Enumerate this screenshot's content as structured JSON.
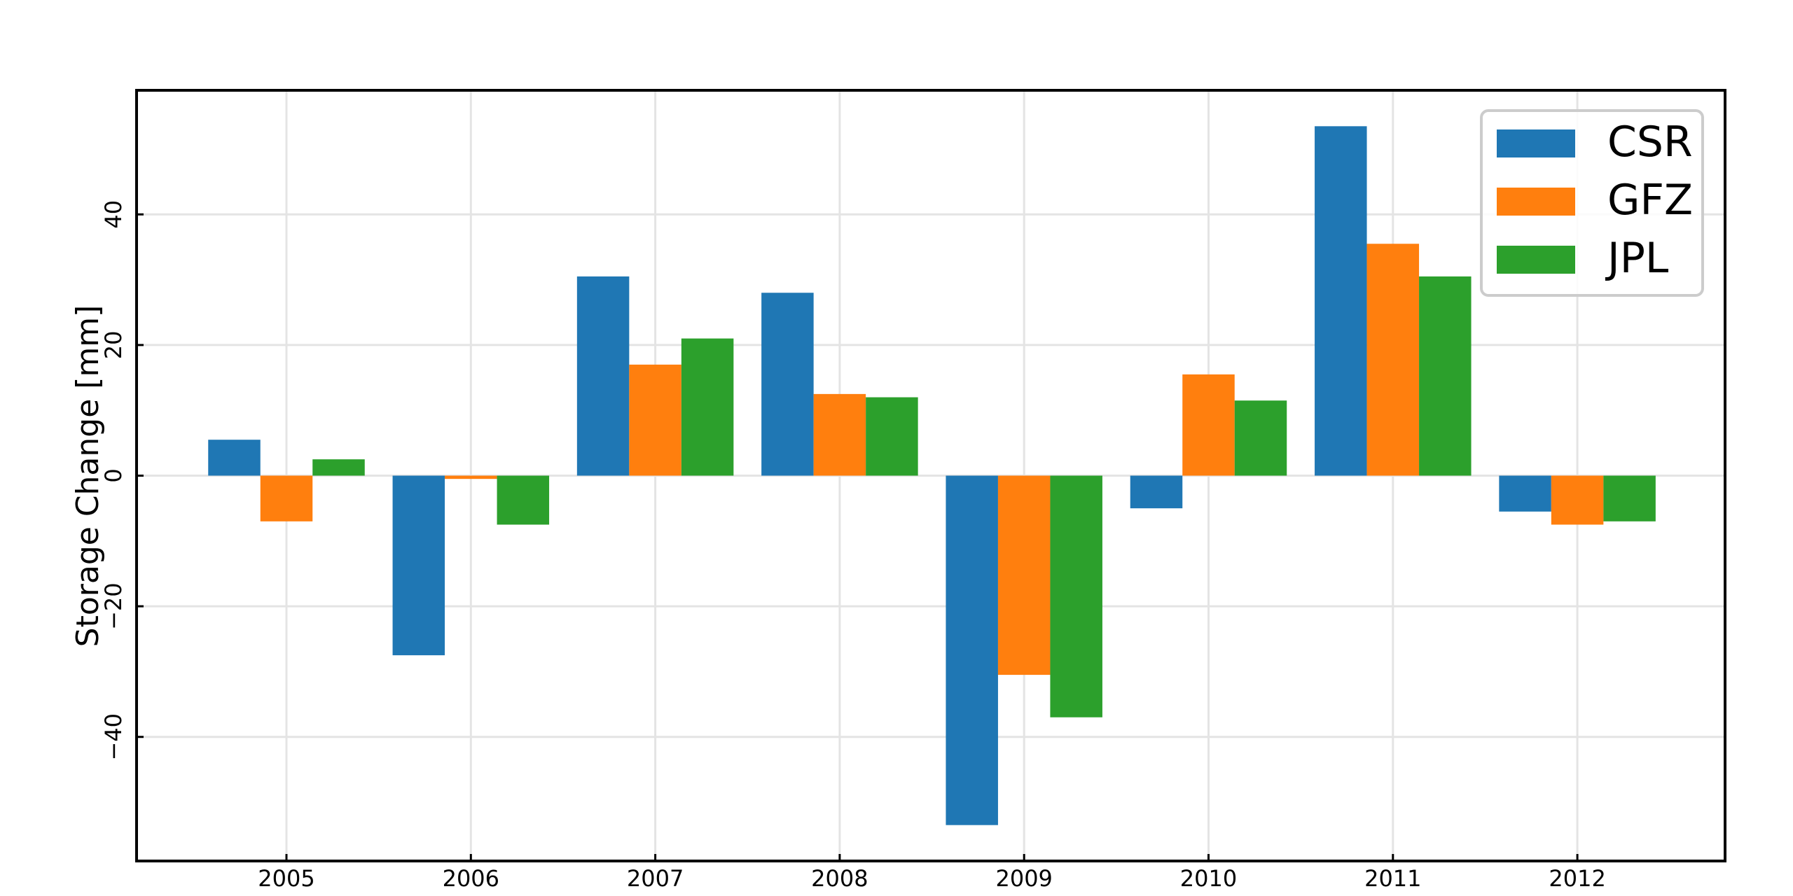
{
  "chart_data": {
    "type": "bar",
    "categories": [
      "2005",
      "2006",
      "2007",
      "2008",
      "2009",
      "2010",
      "2011",
      "2012"
    ],
    "series": [
      {
        "name": "CSR",
        "color": "#1f77b4",
        "values": [
          5.5,
          -27.5,
          30.5,
          28.0,
          -53.5,
          -5.0,
          53.5,
          -5.5
        ]
      },
      {
        "name": "GFZ",
        "color": "#ff7f0e",
        "values": [
          -7.0,
          -0.5,
          17.0,
          12.5,
          -30.5,
          15.5,
          35.5,
          -7.5
        ]
      },
      {
        "name": "JPL",
        "color": "#2ca02c",
        "values": [
          2.5,
          -7.5,
          21.0,
          12.0,
          -37.0,
          11.5,
          30.5,
          -7.0
        ]
      }
    ],
    "ylabel": "Storage Change [mm]",
    "ylim": [
      -59,
      59
    ],
    "yticks": [
      -40,
      -20,
      0,
      20,
      40
    ],
    "ytick_labels": [
      "−40",
      "−20",
      "0",
      "20",
      "40"
    ],
    "grid": true,
    "legend_position": "top-right"
  }
}
